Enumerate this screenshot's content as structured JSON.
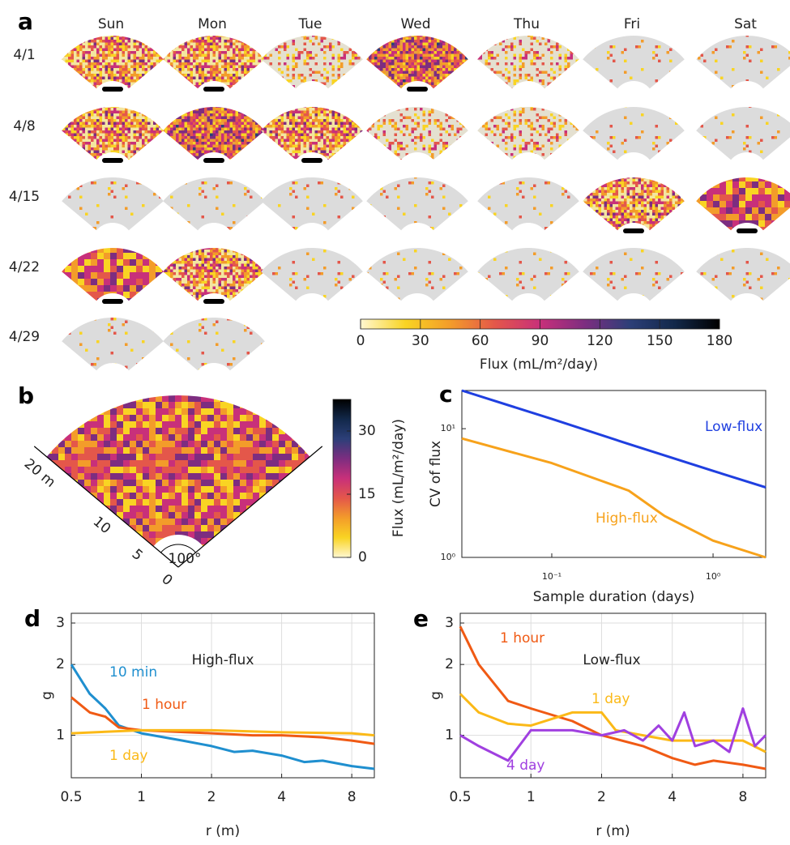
{
  "chart_data": [
    {
      "type": "fan_grid",
      "label": "a",
      "columns": [
        "Sun",
        "Mon",
        "Tue",
        "Wed",
        "Thu",
        "Fri",
        "Sat"
      ],
      "rows": [
        "4/1",
        "4/8",
        "4/15",
        "4/22",
        "4/29"
      ],
      "colormap": [
        "#fff7d0",
        "#f9d423",
        "#f39c2a",
        "#e4574a",
        "#c8307a",
        "#7d2d80",
        "#2c3f78",
        "#12284a",
        "#000000"
      ],
      "colorbar": {
        "lim": [
          0,
          180
        ],
        "ticks": [
          0,
          30,
          60,
          90,
          120,
          150,
          180
        ],
        "label": "Flux (mL/m²/day)"
      }
    },
    {
      "type": "fan_map",
      "label": "b",
      "radius_labels": [
        "0",
        "5",
        "10",
        "20 m"
      ],
      "angle_label": "100°",
      "colorbar": {
        "lim": [
          0,
          37.5
        ],
        "ticks": [
          0,
          15,
          30
        ],
        "label": "Flux (mL/m²/day)"
      }
    },
    {
      "type": "line",
      "label": "c",
      "log_x": true,
      "log_y": true,
      "grid": false,
      "xlim": [
        0.0277,
        2.12
      ],
      "ylim": [
        1,
        19.8
      ],
      "xticks": [
        {
          "value": 0.1,
          "label": "10⁻¹"
        },
        {
          "value": 1,
          "label": "10⁰"
        }
      ],
      "yticks": [
        {
          "value": 1,
          "label": "10⁰"
        },
        {
          "value": 10,
          "label": "10¹"
        }
      ],
      "xlabel": "Sample duration (days)",
      "ylabel": "CV of flux",
      "series": [
        {
          "name": "Low-flux",
          "color": "#1f3fe0",
          "x": [
            0.0277,
            0.1,
            0.3,
            1,
            2.12
          ],
          "y": [
            19.8,
            11.9,
            7.6,
            4.7,
            3.5
          ]
        },
        {
          "name": "High-flux",
          "color": "#f7a21b",
          "x": [
            0.0277,
            0.1,
            0.3,
            0.5,
            1,
            2.12
          ],
          "y": [
            8.4,
            5.4,
            3.3,
            2.1,
            1.35,
            1.0
          ]
        }
      ]
    },
    {
      "type": "line",
      "label": "d",
      "log_x": true,
      "log_y": true,
      "grid": true,
      "title": "High-flux",
      "xlim": [
        0.5,
        10
      ],
      "ylim": [
        0.66,
        3.3
      ],
      "xticks": [
        0.5,
        1,
        2,
        4,
        8
      ],
      "yticks": [
        1,
        2,
        3
      ],
      "xlabel": "r (m)",
      "ylabel": "g",
      "series": [
        {
          "name": "10 min",
          "color": "#1f8fcf",
          "x": [
            0.5,
            0.6,
            0.7,
            0.8,
            1,
            1.5,
            2,
            2.5,
            3,
            4,
            5,
            6,
            8,
            10
          ],
          "y": [
            2.0,
            1.5,
            1.3,
            1.1,
            1.02,
            0.95,
            0.9,
            0.85,
            0.86,
            0.82,
            0.77,
            0.78,
            0.74,
            0.72
          ]
        },
        {
          "name": "1 hour",
          "color": "#f05a14",
          "x": [
            0.5,
            0.6,
            0.7,
            0.8,
            1,
            2,
            3,
            4,
            6,
            8,
            10
          ],
          "y": [
            1.45,
            1.25,
            1.2,
            1.08,
            1.05,
            1.02,
            1.0,
            1.0,
            0.98,
            0.95,
            0.92
          ]
        },
        {
          "name": "1 day",
          "color": "#fbb917",
          "x": [
            0.5,
            1,
            2,
            4,
            8,
            10
          ],
          "y": [
            1.02,
            1.05,
            1.05,
            1.03,
            1.02,
            1.0
          ]
        }
      ]
    },
    {
      "type": "line",
      "label": "e",
      "log_x": true,
      "log_y": true,
      "grid": true,
      "title": "Low-flux",
      "xlim": [
        0.5,
        10
      ],
      "ylim": [
        0.66,
        3.3
      ],
      "xticks": [
        0.5,
        1,
        2,
        4,
        8
      ],
      "yticks": [
        1,
        2,
        3
      ],
      "xlabel": "r (m)",
      "ylabel": "g",
      "series": [
        {
          "name": "1 hour",
          "color": "#f05a14",
          "x": [
            0.5,
            0.6,
            0.8,
            1,
            1.5,
            2,
            3,
            4,
            5,
            6,
            8,
            10
          ],
          "y": [
            2.9,
            2.0,
            1.4,
            1.3,
            1.15,
            1.0,
            0.9,
            0.8,
            0.75,
            0.78,
            0.75,
            0.72
          ]
        },
        {
          "name": "1 day",
          "color": "#fbb917",
          "x": [
            0.5,
            0.6,
            0.8,
            1,
            1.5,
            2,
            2.3,
            3,
            4,
            6,
            8,
            10
          ],
          "y": [
            1.5,
            1.25,
            1.12,
            1.1,
            1.25,
            1.25,
            1.05,
            1.0,
            0.95,
            0.95,
            0.95,
            0.85
          ]
        },
        {
          "name": "4 day",
          "color": "#a040e0",
          "x": [
            0.5,
            0.6,
            0.8,
            1,
            1.5,
            2,
            2.5,
            3,
            3.5,
            4,
            4.5,
            5,
            6,
            7,
            8,
            9,
            10
          ],
          "y": [
            1.0,
            0.9,
            0.78,
            1.05,
            1.05,
            1.0,
            1.05,
            0.95,
            1.1,
            0.95,
            1.25,
            0.9,
            0.95,
            0.85,
            1.3,
            0.9,
            1.0
          ]
        }
      ]
    }
  ]
}
